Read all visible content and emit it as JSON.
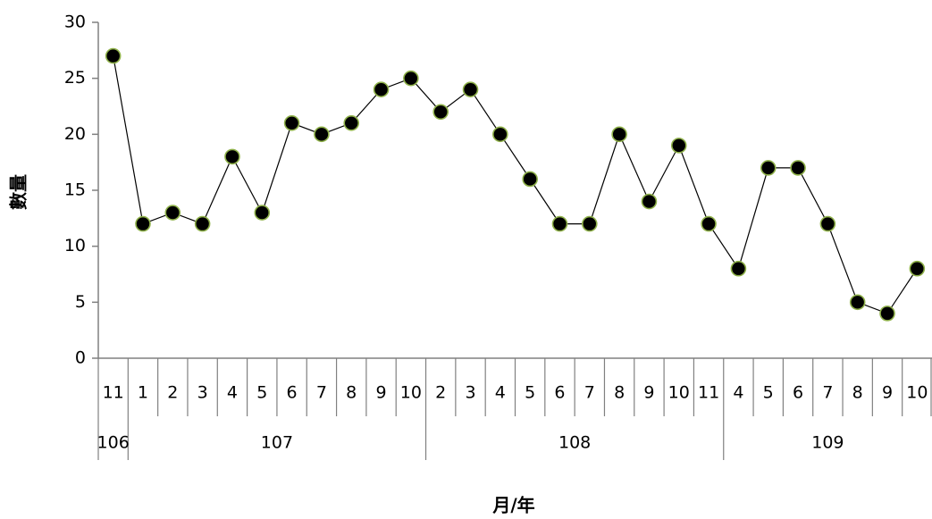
{
  "chart_data": {
    "type": "line",
    "xlabel": "月/年",
    "ylabel": "數量",
    "ylim": [
      0,
      30
    ],
    "yticks": [
      "0",
      "5",
      "10",
      "15",
      "20",
      "25",
      "30"
    ],
    "grid": false,
    "legend": "none",
    "colors": {
      "line": "#000000",
      "marker_fill": "#000000",
      "marker_edge": "#8fb14a",
      "axis": "#808080"
    },
    "months": [
      "11",
      "1",
      "2",
      "3",
      "4",
      "5",
      "6",
      "7",
      "8",
      "9",
      "10",
      "2",
      "3",
      "4",
      "5",
      "6",
      "7",
      "8",
      "9",
      "10",
      "11",
      "4",
      "5",
      "6",
      "7",
      "8",
      "9",
      "10"
    ],
    "years": [
      {
        "label": "106",
        "count": 1
      },
      {
        "label": "107",
        "count": 10
      },
      {
        "label": "108",
        "count": 10
      },
      {
        "label": "109",
        "count": 7
      }
    ],
    "series": [
      {
        "values": [
          27,
          12,
          13,
          12,
          18,
          13,
          21,
          20,
          21,
          24,
          25,
          22,
          24,
          20,
          16,
          12,
          12,
          20,
          14,
          19,
          12,
          8,
          17,
          17,
          12,
          5,
          4,
          8
        ]
      }
    ]
  }
}
